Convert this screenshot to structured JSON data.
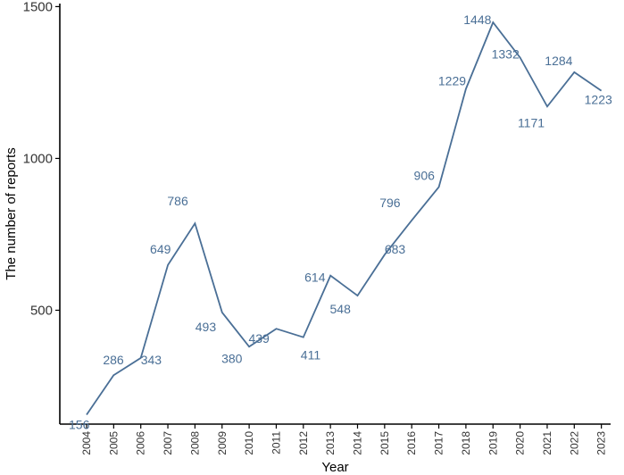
{
  "chart_data": {
    "type": "line",
    "title": "",
    "xlabel": "Year",
    "ylabel": "The number of reports",
    "x": [
      "2004",
      "2005",
      "2006",
      "2007",
      "2008",
      "2009",
      "2010",
      "2011",
      "2012",
      "2013",
      "2014",
      "2015",
      "2016",
      "2017",
      "2018",
      "2019",
      "2020",
      "2021",
      "2022",
      "2023"
    ],
    "series": [
      {
        "values": [
          156,
          286,
          343,
          649,
          786,
          493,
          380,
          439,
          411,
          614,
          548,
          683,
          796,
          906,
          1229,
          1448,
          1332,
          1171,
          1284,
          1223
        ],
        "color": "#4a6f96"
      }
    ],
    "data_labels": [
      "156",
      "286",
      "343",
      "649",
      "786",
      "493",
      "380",
      "439",
      "411",
      "614",
      "548",
      "683",
      "796",
      "906",
      "1229",
      "1448",
      "1332",
      "1171",
      "1284",
      "1223"
    ],
    "yticks": [
      500,
      1000,
      1500
    ],
    "ytick_labels": [
      "500",
      "1000",
      "1500"
    ],
    "ylim": [
      125,
      1510
    ],
    "grid": false,
    "legend": "none"
  }
}
